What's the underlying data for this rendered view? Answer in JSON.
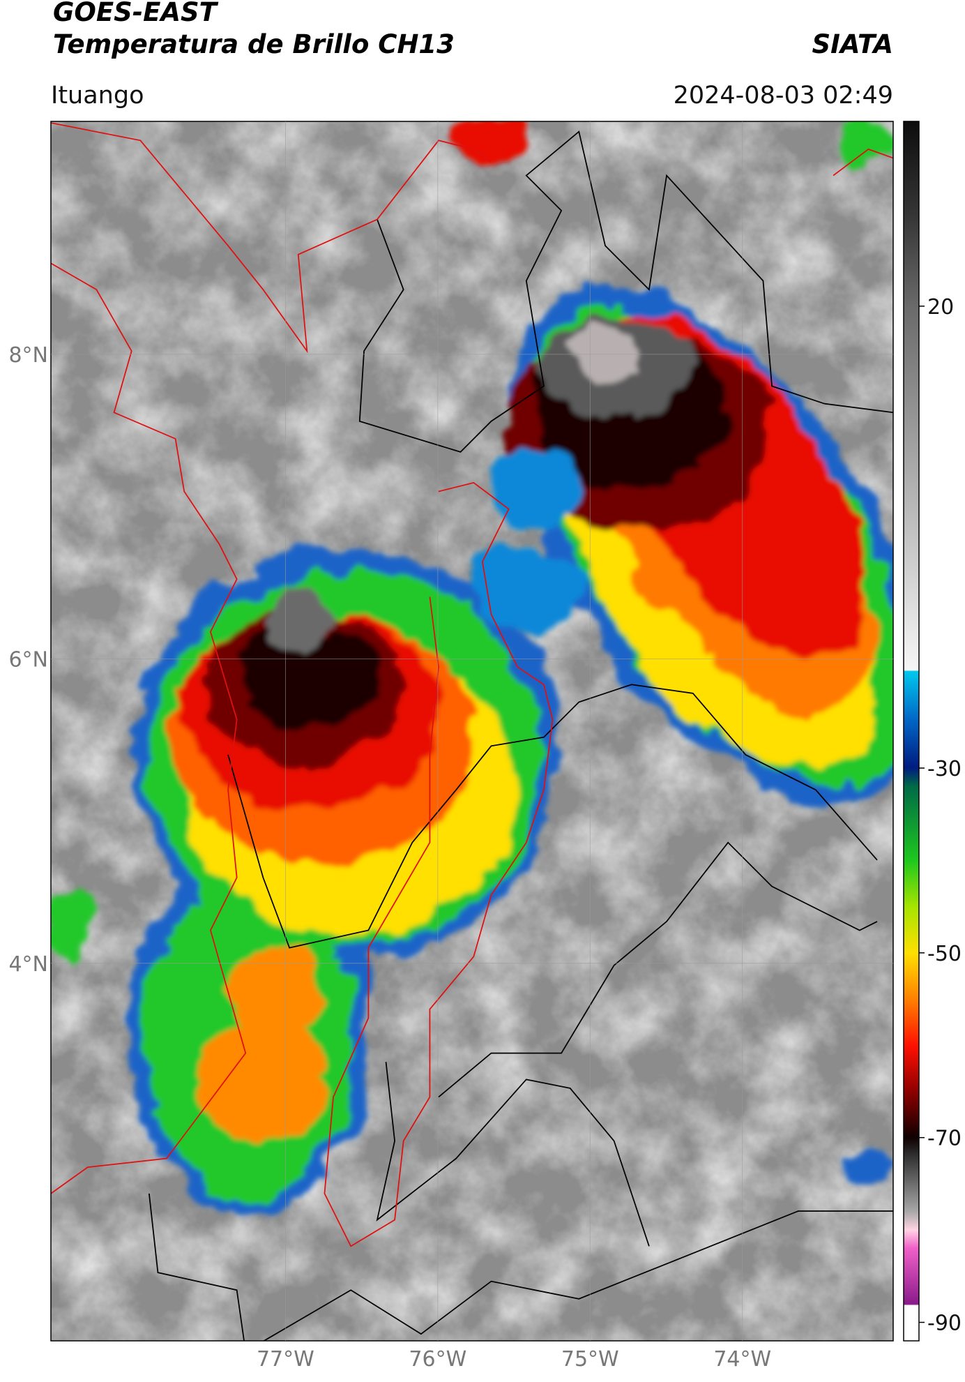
{
  "header": {
    "title": "GOES-EAST",
    "subtitle": "Temperatura de Brillo CH13",
    "source": "SIATA",
    "location": "Ituango",
    "datetime": "2024-08-03 02:49"
  },
  "map": {
    "xlim": [
      -78.54,
      -73.01
    ],
    "ylim": [
      1.52,
      9.53
    ],
    "xticks": [
      {
        "value": -77,
        "label": "77°W"
      },
      {
        "value": -76,
        "label": "76°W"
      },
      {
        "value": -75,
        "label": "75°W"
      },
      {
        "value": -74,
        "label": "74°W"
      }
    ],
    "yticks": [
      {
        "value": 8,
        "label": "8°N"
      },
      {
        "value": 6,
        "label": "6°N"
      },
      {
        "value": 4,
        "label": "4°N"
      }
    ],
    "grid": true
  },
  "colorbar": {
    "lim": [
      -92,
      40
    ],
    "ticks": [
      20,
      -30,
      -50,
      -70,
      -90
    ]
  }
}
